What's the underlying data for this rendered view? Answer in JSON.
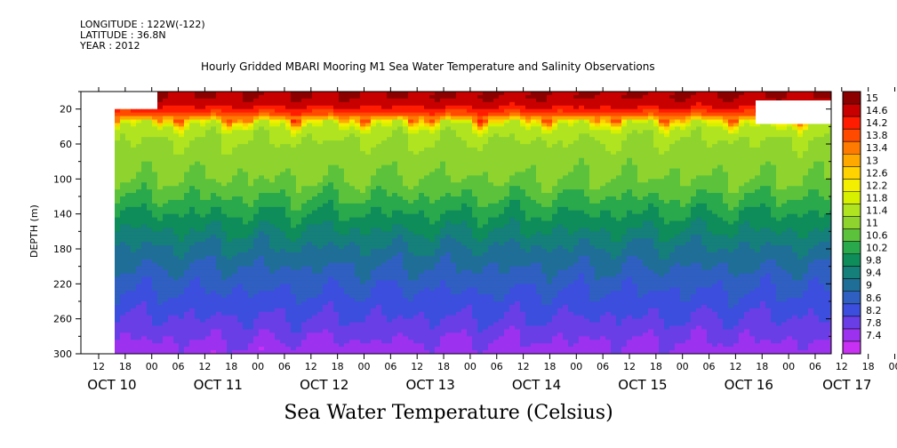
{
  "header": {
    "longitude": "LONGITUDE : 122W(-122)",
    "latitude": "LATITUDE : 36.8N",
    "year": "YEAR : 2012"
  },
  "chart_data": {
    "type": "heatmap",
    "title": "Hourly Gridded MBARI Mooring M1 Sea Water Temperature and Salinity Observations",
    "xlabel": "",
    "ylabel": "DEPTH (m)",
    "colorbar_title": "Sea Water Temperature (Celsius)",
    "yaxis": {
      "range": [
        0,
        300
      ],
      "inverted": true,
      "ticks": [
        20,
        60,
        100,
        140,
        180,
        220,
        260,
        300
      ]
    },
    "xaxis": {
      "hour_ticks": [
        "12",
        "18",
        "00",
        "06",
        "12",
        "18",
        "00",
        "06",
        "12",
        "18",
        "00",
        "06",
        "12",
        "18",
        "00",
        "06",
        "12",
        "18",
        "00",
        "06",
        "12",
        "18",
        "00",
        "06",
        "12",
        "18",
        "00",
        "06",
        "12",
        "18",
        "00",
        "06"
      ],
      "day_labels": [
        "OCT 10",
        "OCT 11",
        "OCT 12",
        "OCT 13",
        "OCT 14",
        "OCT 15",
        "OCT 16",
        "OCT 17"
      ]
    },
    "colorbar": {
      "labels": [
        "15",
        "14.6",
        "14.2",
        "13.8",
        "13.4",
        "13",
        "12.6",
        "12.2",
        "11.8",
        "11.4",
        "11",
        "10.6",
        "10.2",
        "9.8",
        "9.4",
        "9",
        "8.6",
        "8.2",
        "7.8",
        "7.4"
      ],
      "colors": [
        "#8c0000",
        "#c80000",
        "#ff1c00",
        "#ff4a00",
        "#ff7a00",
        "#ffa800",
        "#ffd200",
        "#f4ef00",
        "#d6f000",
        "#b0e420",
        "#8fd42e",
        "#5cc23c",
        "#2aa84c",
        "#0e8c5a",
        "#157f7a",
        "#1f6e98",
        "#2f5fc0",
        "#3c4ede",
        "#6a3ee6",
        "#9c32f0",
        "#c830f4"
      ]
    },
    "depth_profile": [
      {
        "depth": 5,
        "temp": 14.8
      },
      {
        "depth": 15,
        "temp": 14.5
      },
      {
        "depth": 25,
        "temp": 13.8
      },
      {
        "depth": 32,
        "temp": 12.4
      },
      {
        "depth": 40,
        "temp": 11.6
      },
      {
        "depth": 60,
        "temp": 11.3
      },
      {
        "depth": 100,
        "temp": 11.0
      },
      {
        "depth": 140,
        "temp": 10.2
      },
      {
        "depth": 180,
        "temp": 9.4
      },
      {
        "depth": 220,
        "temp": 8.8
      },
      {
        "depth": 260,
        "temp": 8.3
      },
      {
        "depth": 300,
        "temp": 7.7
      }
    ]
  }
}
